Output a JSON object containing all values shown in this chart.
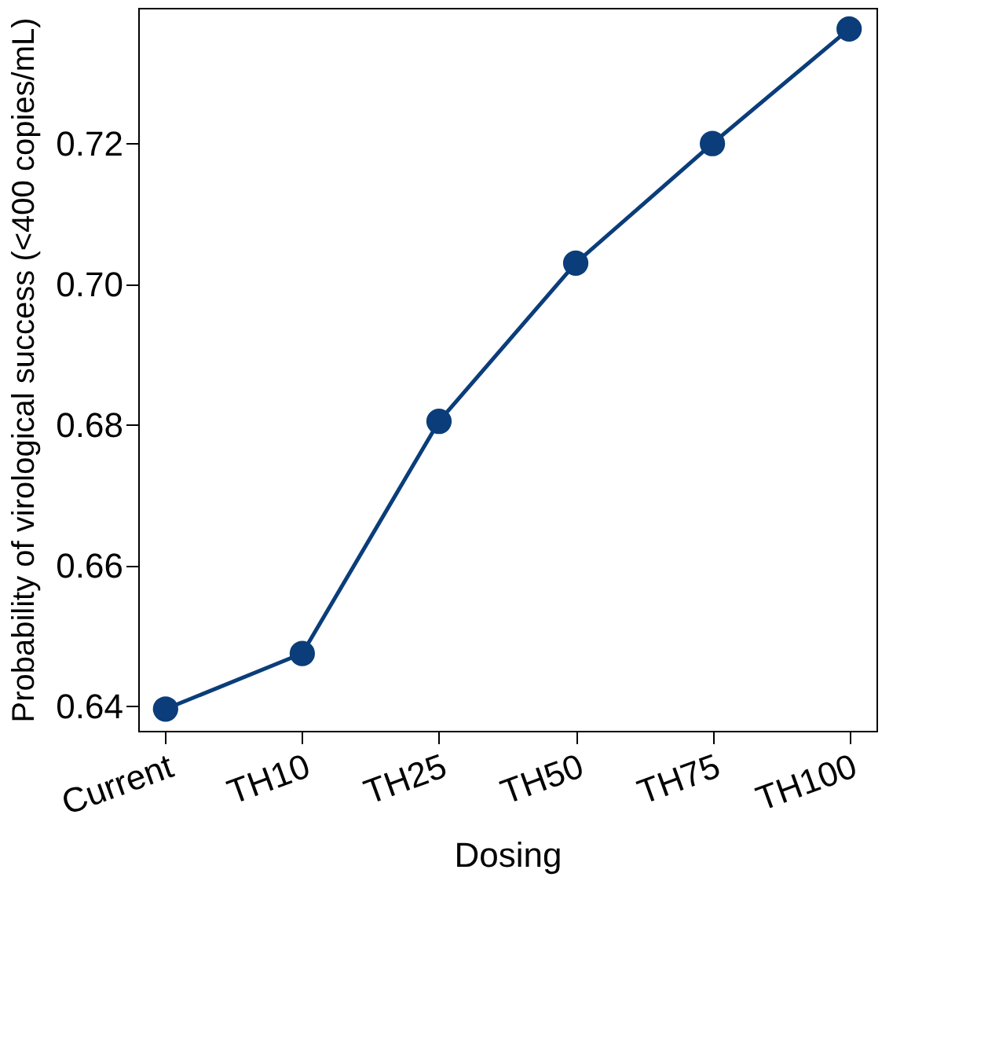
{
  "chart_data": {
    "type": "line",
    "xlabel": "Dosing",
    "ylabel": "Probability of virological success (<400 copies/mL)",
    "categories": [
      "Current",
      "TH10",
      "TH25",
      "TH50",
      "TH75",
      "TH100"
    ],
    "series": [
      {
        "color": "#0a3d7a",
        "values": [
          0.6396,
          0.6475,
          0.6805,
          0.703,
          0.72,
          0.7363
        ]
      }
    ],
    "ylim": [
      0.6365,
      0.7393
    ],
    "yticks": [
      {
        "value": 0.64,
        "label": "0.64"
      },
      {
        "value": 0.66,
        "label": "0.66"
      },
      {
        "value": 0.68,
        "label": "0.68"
      },
      {
        "value": 0.7,
        "label": "0.70"
      },
      {
        "value": 0.72,
        "label": "0.72"
      }
    ],
    "marker": "circle",
    "line_style": "solid",
    "grid": false
  }
}
